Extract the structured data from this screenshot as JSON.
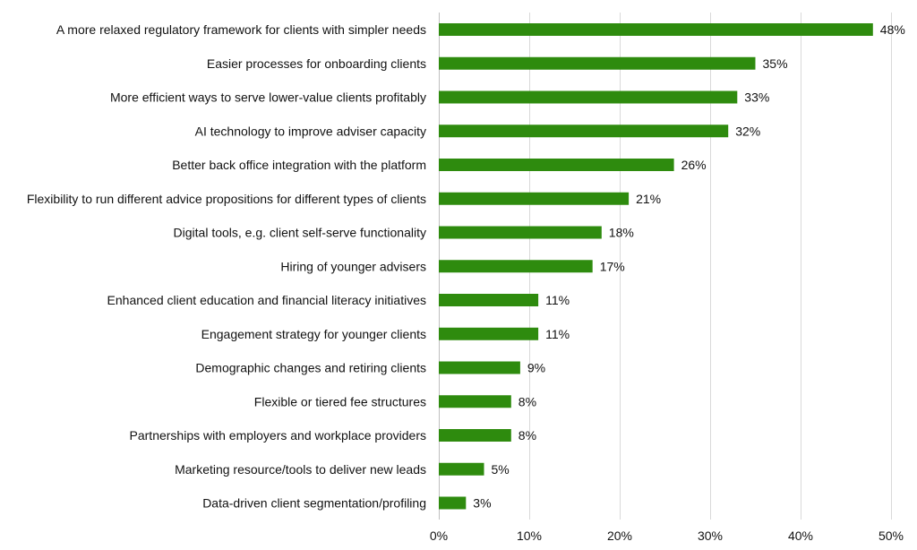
{
  "chart_data": {
    "type": "bar",
    "orientation": "horizontal",
    "categories": [
      "A more relaxed regulatory framework for clients with simpler needs",
      "Easier processes for onboarding clients",
      "More efficient ways to serve lower-value clients profitably",
      "AI technology to improve adviser capacity",
      "Better back office integration with the platform",
      "Flexibility to run different advice propositions for different types of clients",
      "Digital tools, e.g. client self-serve functionality",
      "Hiring of younger advisers",
      "Enhanced client education and financial literacy initiatives",
      "Engagement strategy for younger clients",
      "Demographic changes and retiring clients",
      "Flexible or tiered fee structures",
      "Partnerships with employers and workplace providers",
      "Marketing resource/tools to deliver new leads",
      "Data-driven client segmentation/profiling"
    ],
    "values": [
      48,
      35,
      33,
      32,
      26,
      21,
      18,
      17,
      11,
      11,
      9,
      8,
      8,
      5,
      3
    ],
    "value_labels": [
      "48%",
      "35%",
      "33%",
      "32%",
      "26%",
      "21%",
      "18%",
      "17%",
      "11%",
      "11%",
      "9%",
      "8%",
      "8%",
      "5%",
      "3%"
    ],
    "xlim": [
      0,
      50
    ],
    "xticks": [
      0,
      10,
      20,
      30,
      40,
      50
    ],
    "xtick_labels": [
      "0%",
      "10%",
      "20%",
      "30%",
      "40%",
      "50%"
    ],
    "title": "",
    "xlabel": "",
    "ylabel": "",
    "grid": "vertical",
    "legend": "none",
    "colors": {
      "bar": "#2e8b0e"
    }
  }
}
